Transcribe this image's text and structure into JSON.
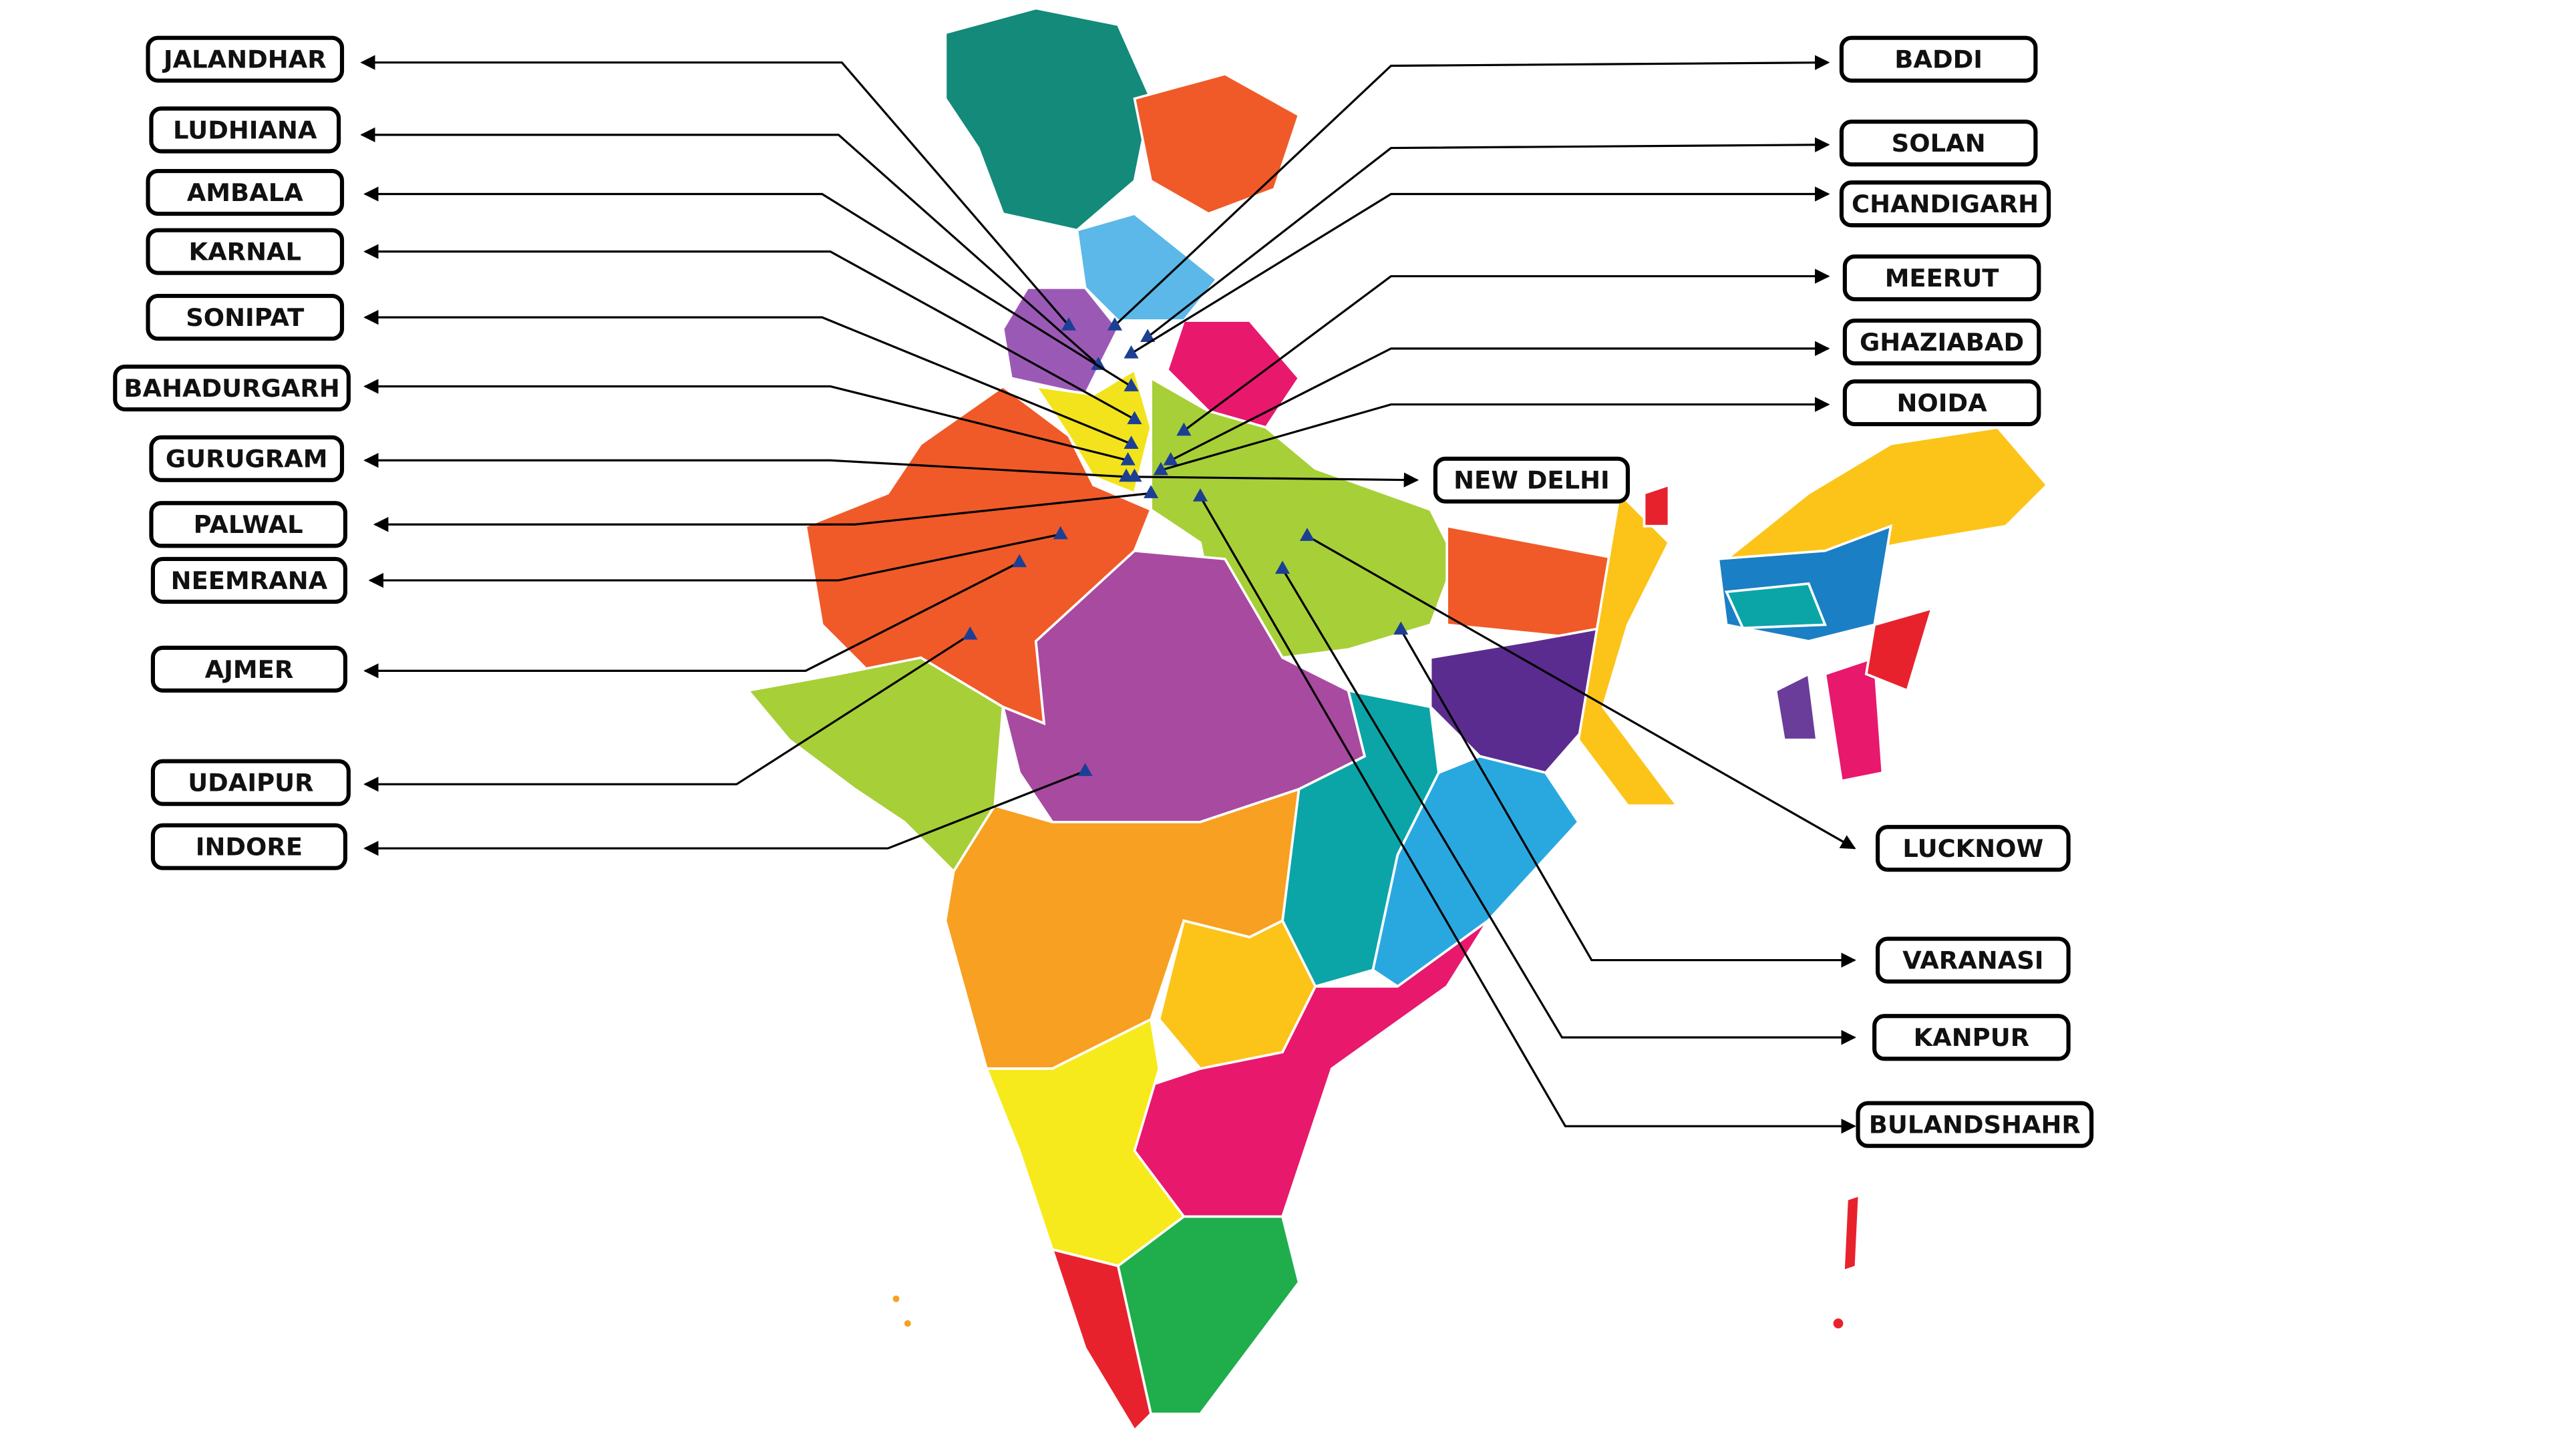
{
  "labels": [
    "JALANDHAR",
    "LUDHIANA",
    "AMBALA",
    "KARNAL",
    "SONIPAT",
    "BAHADURGARH",
    "GURUGRAM",
    "PALWAL",
    "NEEMRANA",
    "AJMER",
    "UDAIPUR",
    "INDORE",
    "BADDI",
    "SOLAN",
    "CHANDIGARH",
    "MEERUT",
    "GHAZIABAD",
    "NOIDA",
    "NEW DELHI",
    "LUCKNOW",
    "VARANASI",
    "KANPUR",
    "BULANDSHAHR"
  ]
}
